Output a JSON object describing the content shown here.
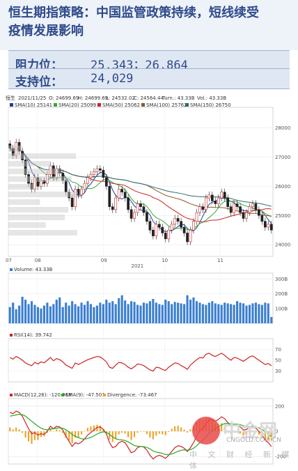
{
  "title_lines": [
    "恒生期指策略：中国监管政策持续，短线续受",
    "疫情发展影响"
  ],
  "levels": [
    {
      "label": "阻力位：",
      "value": "25,343；26,864"
    },
    {
      "label": "支持位：",
      "value": "24,029"
    }
  ],
  "watermark": {
    "brand": "中金网",
    "url": "CNGOLD.COM.CN",
    "tagline": "中 文 财 经 新 媒 体"
  },
  "chart_data": {
    "type": "candlestick",
    "header": {
      "symbol": "恒生",
      "date": "2021/11/25",
      "O": "24699.69",
      "H": "24699.69",
      "L": "24532.02",
      "C": "24564.44",
      "Turn": "43.33B",
      "Vol": "43.33B"
    },
    "ma_legend": [
      {
        "name": "SMA(10)",
        "value": "25141",
        "color": "#1f3c99"
      },
      {
        "name": "SMA(20)",
        "value": "25099",
        "color": "#33aa33"
      },
      {
        "name": "SMA(50)",
        "value": "25062",
        "color": "#cc2222"
      },
      {
        "name": "SMA(100)",
        "value": "25762",
        "color": "#8b5a2b"
      },
      {
        "name": "SMA(150)",
        "value": "26750",
        "color": "#2d6b6b"
      }
    ],
    "price_ticks": [
      "28000",
      "27000",
      "26000",
      "25000",
      "24000"
    ],
    "ylim": [
      23600,
      28700
    ],
    "x_ticks": [
      "07",
      "08",
      "09",
      "10",
      "11"
    ],
    "year_label": "2021",
    "close": [
      27300,
      27050,
      27500,
      27200,
      26900,
      26400,
      26100,
      25900,
      26300,
      26000,
      26200,
      26100,
      26400,
      26700,
      26300,
      26600,
      26450,
      26200,
      25800,
      25600,
      25300,
      25900,
      25700,
      25900,
      26100,
      26300,
      26400,
      26500,
      26600,
      26550,
      26300,
      26000,
      25300,
      25200,
      25600,
      25900,
      25800,
      25600,
      25200,
      24900,
      25100,
      25400,
      25300,
      25100,
      24800,
      24500,
      24300,
      24700,
      24600,
      24400,
      24200,
      24500,
      24700,
      24900,
      24800,
      24600,
      24400,
      24100,
      24500,
      24800,
      25100,
      25300,
      25200,
      25600,
      25700,
      25500,
      25400,
      25600,
      25800,
      25600,
      25300,
      25100,
      25400,
      25300,
      25100,
      24900,
      25100,
      25300,
      25400,
      25200,
      25000,
      24800,
      24600,
      24700,
      24500
    ],
    "volume_legend": {
      "name": "Volume",
      "value": "43.33B"
    },
    "volume_ticks": [
      "300B",
      "200B",
      "100B"
    ],
    "volume": [
      110,
      140,
      95,
      120,
      180,
      160,
      130,
      150,
      125,
      110,
      100,
      120,
      140,
      115,
      130,
      160,
      175,
      110,
      140,
      120,
      150,
      130,
      115,
      140,
      125,
      150,
      130,
      110,
      120,
      140,
      130,
      160,
      140,
      150,
      130,
      170,
      190,
      155,
      130,
      150,
      145,
      125,
      120,
      140,
      135,
      150,
      165,
      140,
      130,
      125,
      160,
      150,
      130,
      145,
      140,
      135,
      130,
      190,
      160,
      175,
      150,
      140,
      130,
      125,
      140,
      150,
      135,
      130,
      125,
      140,
      135,
      130,
      125,
      150,
      140,
      135,
      120,
      125,
      135,
      140,
      130,
      125,
      140,
      135,
      43
    ],
    "rsi_legend": {
      "name": "RSI(14)",
      "value": "39.742"
    },
    "rsi_ticks": [
      "70",
      "50",
      "30"
    ],
    "rsi": [
      55,
      52,
      57,
      54,
      50,
      45,
      42,
      40,
      46,
      43,
      47,
      45,
      50,
      55,
      49,
      53,
      51,
      47,
      41,
      38,
      35,
      45,
      42,
      45,
      48,
      51,
      53,
      55,
      57,
      56,
      52,
      47,
      37,
      35,
      41,
      46,
      45,
      42,
      37,
      34,
      38,
      43,
      42,
      40,
      36,
      32,
      30,
      37,
      36,
      33,
      31,
      37,
      41,
      45,
      44,
      40,
      37,
      33,
      41,
      46,
      51,
      55,
      54,
      61,
      63,
      59,
      57,
      60,
      63,
      59,
      54,
      50,
      55,
      54,
      51,
      48,
      52,
      56,
      58,
      54,
      50,
      46,
      42,
      44,
      39.7
    ],
    "macd_legend": [
      {
        "name": "MACD(12,26)",
        "value": "-120.968",
        "color": "#cc2222"
      },
      {
        "name": "EMA(9)",
        "value": "-47.501",
        "color": "#22aa22"
      },
      {
        "name": "Divergence",
        "value": "-73.467",
        "color": "#f0a020"
      }
    ],
    "macd_ticks": [
      "200",
      "0",
      "-200"
    ],
    "macd": [
      150,
      140,
      160,
      150,
      120,
      70,
      20,
      -20,
      -10,
      -30,
      -20,
      -25,
      0,
      40,
      20,
      40,
      35,
      10,
      -40,
      -80,
      -120,
      -90,
      -100,
      -85,
      -60,
      -30,
      -10,
      10,
      30,
      35,
      15,
      -20,
      -90,
      -130,
      -120,
      -90,
      -80,
      -90,
      -130,
      -170,
      -160,
      -130,
      -120,
      -125,
      -150,
      -190,
      -220,
      -200,
      -190,
      -200,
      -215,
      -190,
      -160,
      -130,
      -115,
      -120,
      -135,
      -160,
      -130,
      -90,
      -40,
      10,
      20,
      60,
      90,
      90,
      80,
      95,
      115,
      100,
      70,
      40,
      55,
      50,
      35,
      10,
      15,
      30,
      40,
      25,
      0,
      -30,
      -70,
      -90,
      -121
    ],
    "ema9": [
      120,
      125,
      130,
      135,
      132,
      120,
      100,
      80,
      60,
      40,
      25,
      15,
      12,
      18,
      20,
      25,
      27,
      24,
      12,
      -5,
      -25,
      -40,
      -50,
      -60,
      -62,
      -57,
      -48,
      -36,
      -22,
      -10,
      -5,
      -8,
      -25,
      -45,
      -60,
      -66,
      -69,
      -73,
      -84,
      -100,
      -113,
      -119,
      -121,
      -122,
      -128,
      -140,
      -156,
      -165,
      -170,
      -176,
      -184,
      -185,
      -180,
      -170,
      -159,
      -151,
      -148,
      -150,
      -146,
      -135,
      -116,
      -91,
      -69,
      -43,
      -16,
      5,
      20,
      35,
      51,
      61,
      63,
      58,
      57,
      56,
      52,
      44,
      38,
      36,
      37,
      34,
      27,
      15,
      -2,
      -20,
      -47.5
    ]
  }
}
